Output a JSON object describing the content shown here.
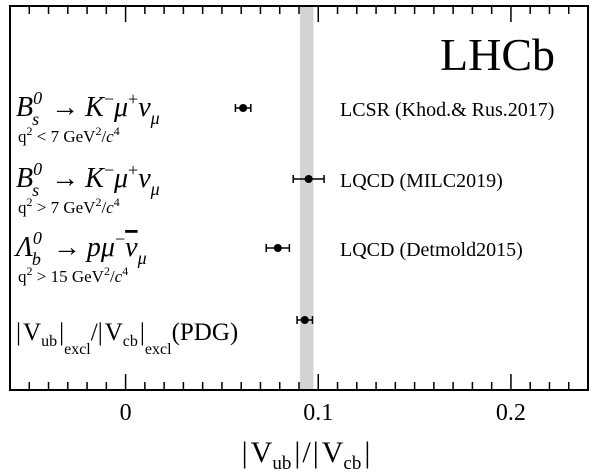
{
  "chart_data": {
    "type": "scatter",
    "title": "LHCb",
    "xlabel_parts": {
      "bar1": "|",
      "v1": "V",
      "s1": "ub",
      "bar2": "|",
      "slash": "/",
      "bar3": "|",
      "v2": "V",
      "s2": "cb",
      "bar4": "|"
    },
    "xlim": [
      -0.06,
      0.24
    ],
    "x_ticks": [
      {
        "value": 0,
        "label": "0"
      },
      {
        "value": 0.1,
        "label": "0.1"
      },
      {
        "value": 0.2,
        "label": "0.2"
      }
    ],
    "band": {
      "min": 0.0905,
      "max": 0.0975,
      "color": "#d3d3d3"
    },
    "points": [
      {
        "value": 0.061,
        "err_minus": 0.004,
        "err_plus": 0.004,
        "source": "LCSR (Khod.& Rus.2017)",
        "process": {
          "B": "B",
          "bsup": "0",
          "bsub": "s",
          "arrow": "→",
          "K": "K",
          "ksup": "−",
          "mu": "μ",
          "musup": "+",
          "nu": "ν",
          "nusub": "μ"
        },
        "cut": {
          "q": "q",
          "qsup": "2",
          "op": " < 7 GeV",
          "gsup": "2",
          "slash": "/",
          "c": "c",
          "csup": "4"
        }
      },
      {
        "value": 0.095,
        "err_minus": 0.008,
        "err_plus": 0.008,
        "source": "LQCD (MILC2019)",
        "process": {
          "B": "B",
          "bsup": "0",
          "bsub": "s",
          "arrow": "→",
          "K": "K",
          "ksup": "−",
          "mu": "μ",
          "musup": "+",
          "nu": "ν",
          "nusub": "μ"
        },
        "cut": {
          "q": "q",
          "qsup": "2",
          "op": " > 7 GeV",
          "gsup": "2",
          "slash": "/",
          "c": "c",
          "csup": "4"
        }
      },
      {
        "value": 0.079,
        "err_minus": 0.006,
        "err_plus": 0.006,
        "source": "LQCD (Detmold2015)",
        "process": {
          "L": "Λ",
          "lsup": "0",
          "lsub": "b",
          "arrow": "→",
          "p": "p",
          "mu": "μ",
          "musup": "−",
          "nu": "ν",
          "nusub": "μ"
        },
        "cut": {
          "q": "q",
          "qsup": "2",
          "op": " > 15 GeV",
          "gsup": "2",
          "slash": "/",
          "c": "c",
          "csup": "4"
        }
      },
      {
        "value": 0.093,
        "err_minus": 0.004,
        "err_plus": 0.004,
        "source": "",
        "pdg": {
          "bar1": "|",
          "v1": "V",
          "s1": "ub",
          "bar2": "|",
          "e1": "excl",
          "slash": "/",
          "bar3": "|",
          "v2": "V",
          "s2": "cb",
          "bar4": "|",
          "e2": "excl",
          "tail": "(PDG)"
        }
      }
    ],
    "grid": false,
    "legend": "none"
  }
}
